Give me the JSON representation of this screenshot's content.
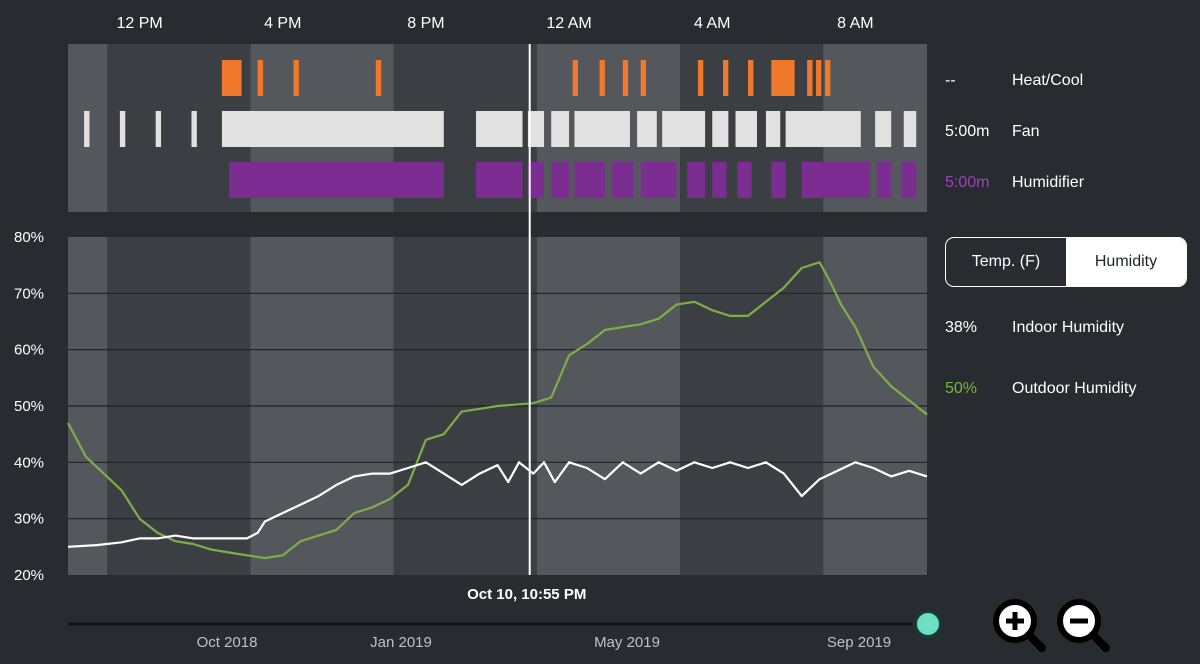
{
  "top_ticks": [
    "12 PM",
    "4 PM",
    "8 PM",
    "12 AM",
    "4 AM",
    "8 AM"
  ],
  "y_ticks": [
    "80%",
    "70%",
    "60%",
    "50%",
    "40%",
    "30%",
    "20%"
  ],
  "cursor_label": "Oct 10, 10:55 PM",
  "timeline_ticks": [
    "Oct 2018",
    "Jan 2019",
    "May 2019",
    "Sep 2019"
  ],
  "legend": {
    "heatcool": {
      "value": "--",
      "name": "Heat/Cool"
    },
    "fan": {
      "value": "5:00m",
      "name": "Fan"
    },
    "humidifier": {
      "value": "5:00m",
      "name": "Humidifier"
    },
    "indoor": {
      "value": "38%",
      "name": "Indoor Humidity"
    },
    "outdoor": {
      "value": "50%",
      "name": "Outdoor Humidity"
    }
  },
  "toggle": {
    "temp": "Temp. (F)",
    "humidity": "Humidity",
    "selected": "humidity"
  },
  "colors": {
    "heatcool": "#f0782a",
    "fan": "#e1e1e1",
    "humidifier": "#7b2d92",
    "outdoor": "#7bb046",
    "indoor": "#ffffff",
    "accent": "#6ee0c7"
  },
  "icons": {
    "zoom_in": "zoom-in-icon",
    "zoom_out": "zoom-out-icon"
  },
  "chart_data": {
    "type": "line",
    "x_unit": "hours since 10:00 AM",
    "xlim": [
      0,
      24
    ],
    "ylim": [
      20,
      80
    ],
    "y_unit": "%",
    "grid": true,
    "series": [
      {
        "name": "Indoor Humidity",
        "color": "#ffffff",
        "points": [
          [
            0,
            25.0
          ],
          [
            0.8,
            25.3
          ],
          [
            1.5,
            25.8
          ],
          [
            2.0,
            26.5
          ],
          [
            2.5,
            26.5
          ],
          [
            3.0,
            27.0
          ],
          [
            3.5,
            26.5
          ],
          [
            4.0,
            26.5
          ],
          [
            4.5,
            26.5
          ],
          [
            5.0,
            26.5
          ],
          [
            5.3,
            27.5
          ],
          [
            5.5,
            29.5
          ],
          [
            6.0,
            31.0
          ],
          [
            6.5,
            32.5
          ],
          [
            7.0,
            34.0
          ],
          [
            7.5,
            36.0
          ],
          [
            8.0,
            37.5
          ],
          [
            8.5,
            38.0
          ],
          [
            9.0,
            38.0
          ],
          [
            9.5,
            39.0
          ],
          [
            10.0,
            40.0
          ],
          [
            10.5,
            38.0
          ],
          [
            11.0,
            36.0
          ],
          [
            11.5,
            38.0
          ],
          [
            12.0,
            39.5
          ],
          [
            12.3,
            36.5
          ],
          [
            12.6,
            40.0
          ],
          [
            13.0,
            38.0
          ],
          [
            13.3,
            40.0
          ],
          [
            13.6,
            36.5
          ],
          [
            14.0,
            40.0
          ],
          [
            14.5,
            39.0
          ],
          [
            15.0,
            37.0
          ],
          [
            15.5,
            40.0
          ],
          [
            16.0,
            38.0
          ],
          [
            16.5,
            40.0
          ],
          [
            17.0,
            38.5
          ],
          [
            17.5,
            40.0
          ],
          [
            18.0,
            39.0
          ],
          [
            18.5,
            40.0
          ],
          [
            19.0,
            39.0
          ],
          [
            19.5,
            40.0
          ],
          [
            20.0,
            38.0
          ],
          [
            20.5,
            34.0
          ],
          [
            21.0,
            37.0
          ],
          [
            21.5,
            38.5
          ],
          [
            22.0,
            40.0
          ],
          [
            22.5,
            39.0
          ],
          [
            23.0,
            37.5
          ],
          [
            23.5,
            38.5
          ],
          [
            24.0,
            37.5
          ]
        ]
      },
      {
        "name": "Outdoor Humidity",
        "color": "#7bb046",
        "points": [
          [
            0,
            47.0
          ],
          [
            0.5,
            41.0
          ],
          [
            1.0,
            38.0
          ],
          [
            1.5,
            35.0
          ],
          [
            2.0,
            30.0
          ],
          [
            2.5,
            27.5
          ],
          [
            3.0,
            26.0
          ],
          [
            3.5,
            25.5
          ],
          [
            4.0,
            24.5
          ],
          [
            4.5,
            24.0
          ],
          [
            5.0,
            23.5
          ],
          [
            5.5,
            23.0
          ],
          [
            6.0,
            23.5
          ],
          [
            6.5,
            26.0
          ],
          [
            7.0,
            27.0
          ],
          [
            7.5,
            28.0
          ],
          [
            8.0,
            31.0
          ],
          [
            8.5,
            32.0
          ],
          [
            9.0,
            33.5
          ],
          [
            9.5,
            36.0
          ],
          [
            10.0,
            44.0
          ],
          [
            10.5,
            45.0
          ],
          [
            11.0,
            49.0
          ],
          [
            11.5,
            49.5
          ],
          [
            12.0,
            50.0
          ],
          [
            13.0,
            50.5
          ],
          [
            13.5,
            51.5
          ],
          [
            14.0,
            59.0
          ],
          [
            14.5,
            61.0
          ],
          [
            15.0,
            63.5
          ],
          [
            15.5,
            64.0
          ],
          [
            16.0,
            64.5
          ],
          [
            16.5,
            65.5
          ],
          [
            17.0,
            68.0
          ],
          [
            17.5,
            68.5
          ],
          [
            18.0,
            67.0
          ],
          [
            18.5,
            66.0
          ],
          [
            19.0,
            66.0
          ],
          [
            19.5,
            68.5
          ],
          [
            20.0,
            71.0
          ],
          [
            20.5,
            74.5
          ],
          [
            21.0,
            75.5
          ],
          [
            21.3,
            72.0
          ],
          [
            21.6,
            68.0
          ],
          [
            22.0,
            64.0
          ],
          [
            22.5,
            57.0
          ],
          [
            23.0,
            53.5
          ],
          [
            23.5,
            51.0
          ],
          [
            24.0,
            48.5
          ]
        ]
      }
    ],
    "events": {
      "heat_cool": [
        [
          4.3,
          4.85
        ],
        [
          5.3,
          5.45
        ],
        [
          6.3,
          6.45
        ],
        [
          8.6,
          8.75
        ],
        [
          14.1,
          14.25
        ],
        [
          14.85,
          15.0
        ],
        [
          15.5,
          15.65
        ],
        [
          16.0,
          16.15
        ],
        [
          17.6,
          17.75
        ],
        [
          18.3,
          18.45
        ],
        [
          19.0,
          19.15
        ],
        [
          19.65,
          20.3
        ],
        [
          20.65,
          20.8
        ],
        [
          20.9,
          21.05
        ],
        [
          21.15,
          21.3
        ]
      ],
      "fan": [
        [
          0.45,
          0.6
        ],
        [
          1.45,
          1.6
        ],
        [
          2.45,
          2.6
        ],
        [
          3.45,
          3.6
        ],
        [
          4.3,
          10.5
        ],
        [
          11.4,
          12.7
        ],
        [
          12.85,
          13.3
        ],
        [
          13.5,
          14.0
        ],
        [
          14.15,
          15.7
        ],
        [
          15.9,
          16.45
        ],
        [
          16.6,
          17.8
        ],
        [
          18.0,
          18.45
        ],
        [
          18.65,
          19.25
        ],
        [
          19.5,
          19.9
        ],
        [
          20.05,
          22.15
        ],
        [
          22.55,
          23.0
        ],
        [
          23.35,
          23.7
        ]
      ],
      "humidifier": [
        [
          4.5,
          10.5
        ],
        [
          11.4,
          12.7
        ],
        [
          12.85,
          13.3
        ],
        [
          13.5,
          14.0
        ],
        [
          14.15,
          15.0
        ],
        [
          15.2,
          15.8
        ],
        [
          16.0,
          17.0
        ],
        [
          17.3,
          17.8
        ],
        [
          18.0,
          18.4
        ],
        [
          18.7,
          19.1
        ],
        [
          19.65,
          20.05
        ],
        [
          20.5,
          22.4
        ],
        [
          22.6,
          23.0
        ],
        [
          23.3,
          23.7
        ]
      ]
    },
    "timeline": {
      "range": [
        "Sep 2018",
        "Oct 2019"
      ],
      "cursor": "Oct 10, 10:55 PM"
    }
  }
}
